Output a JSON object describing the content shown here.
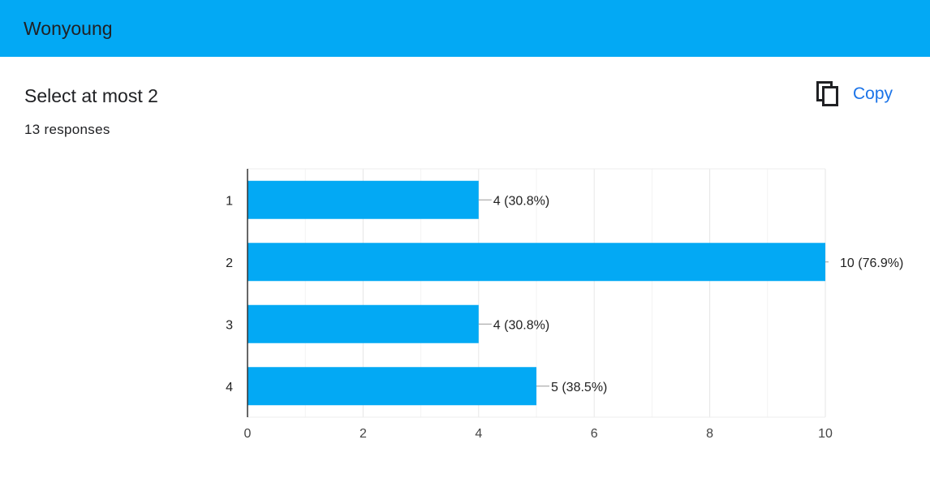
{
  "header": {
    "title": "Wonyoung"
  },
  "question": {
    "title": "Select at most 2",
    "responses": "13 responses"
  },
  "copy_button": {
    "label": "Copy",
    "icon": "copy-icon"
  },
  "colors": {
    "header_bg": "#03a9f4",
    "bar": "#03a9f4",
    "link": "#1a73e8"
  },
  "chart_data": {
    "type": "bar",
    "orientation": "horizontal",
    "categories": [
      "1",
      "2",
      "3",
      "4"
    ],
    "values": [
      4,
      10,
      4,
      5
    ],
    "value_labels": [
      "4 (30.8%)",
      "10 (76.9%)",
      "4 (30.8%)",
      "5 (38.5%)"
    ],
    "xlim": [
      0,
      10
    ],
    "xticks": [
      0,
      2,
      4,
      6,
      8,
      10
    ],
    "grid": true,
    "legend": "none"
  }
}
